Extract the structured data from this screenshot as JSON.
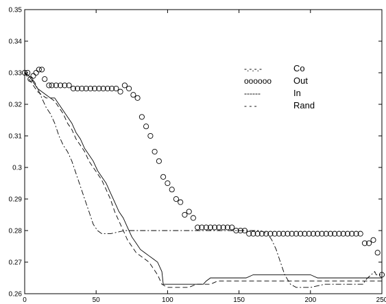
{
  "chart_data": {
    "type": "line",
    "title": "",
    "xlabel": "",
    "ylabel": "",
    "xlim": [
      0,
      250
    ],
    "ylim": [
      0.26,
      0.35
    ],
    "grid": false,
    "legend_position": "top-right",
    "x_ticks": [
      0,
      50,
      100,
      150,
      200,
      250
    ],
    "y_ticks": [
      0.26,
      0.27,
      0.28,
      0.29,
      0.3,
      0.31,
      0.32,
      0.33,
      0.34,
      0.35
    ],
    "x_tick_labels": [
      "0",
      "50",
      "100",
      "150",
      "200",
      "250"
    ],
    "y_tick_labels": [
      "0.26",
      "0.27",
      "0.28",
      "0.29",
      "0.3",
      "0.31",
      "0.32",
      "0.33",
      "0.34",
      "0.35"
    ],
    "legend": [
      {
        "key": "Co",
        "sample": "-.-.-.-",
        "label": "Co"
      },
      {
        "key": "Out",
        "sample": "oooooo",
        "label": "Out"
      },
      {
        "key": "In",
        "sample": "------",
        "label": "In"
      },
      {
        "key": "Rand",
        "sample": "- - -",
        "label": "Rand"
      }
    ],
    "series": [
      {
        "name": "Co",
        "style": "dashdot",
        "color": "#000000",
        "x": [
          0,
          3,
          5,
          7,
          9,
          11,
          13,
          15,
          18,
          21,
          24,
          27,
          30,
          33,
          36,
          39,
          42,
          45,
          48,
          51,
          54,
          56,
          60,
          70,
          80,
          90,
          100,
          110,
          120,
          140,
          160,
          165,
          170,
          173,
          176,
          179,
          182,
          186,
          190,
          200,
          210,
          220,
          230,
          237,
          238,
          240,
          245,
          246,
          248,
          250
        ],
        "y": [
          0.33,
          0.329,
          0.328,
          0.327,
          0.325,
          0.323,
          0.321,
          0.319,
          0.317,
          0.314,
          0.31,
          0.307,
          0.305,
          0.302,
          0.298,
          0.294,
          0.29,
          0.286,
          0.282,
          0.28,
          0.279,
          0.279,
          0.279,
          0.28,
          0.28,
          0.28,
          0.28,
          0.28,
          0.28,
          0.28,
          0.28,
          0.28,
          0.279,
          0.277,
          0.274,
          0.27,
          0.266,
          0.263,
          0.262,
          0.262,
          0.263,
          0.263,
          0.263,
          0.263,
          0.264,
          0.265,
          0.267,
          0.266,
          0.266,
          0.266
        ]
      },
      {
        "name": "Out",
        "style": "markers",
        "color": "#000000",
        "x": [
          0,
          2,
          4,
          6,
          8,
          10,
          12,
          14,
          17,
          19,
          22,
          25,
          28,
          31,
          34,
          37,
          40,
          43,
          46,
          49,
          52,
          55,
          58,
          61,
          64,
          67,
          70,
          73,
          76,
          79,
          82,
          85,
          88,
          91,
          94,
          97,
          100,
          103,
          106,
          109,
          112,
          115,
          118,
          121,
          124,
          127,
          130,
          133,
          136,
          139,
          142,
          145,
          148,
          151,
          154,
          157,
          160,
          163,
          166,
          169,
          172,
          175,
          178,
          181,
          184,
          187,
          190,
          193,
          196,
          199,
          202,
          205,
          208,
          211,
          214,
          217,
          220,
          223,
          226,
          229,
          232,
          235,
          238,
          241,
          244,
          247,
          250
        ],
        "y": [
          0.33,
          0.33,
          0.328,
          0.329,
          0.33,
          0.331,
          0.331,
          0.328,
          0.326,
          0.326,
          0.326,
          0.326,
          0.326,
          0.326,
          0.325,
          0.325,
          0.325,
          0.325,
          0.325,
          0.325,
          0.325,
          0.325,
          0.325,
          0.325,
          0.325,
          0.324,
          0.326,
          0.325,
          0.323,
          0.322,
          0.316,
          0.313,
          0.31,
          0.305,
          0.302,
          0.297,
          0.295,
          0.293,
          0.29,
          0.289,
          0.285,
          0.286,
          0.284,
          0.281,
          0.281,
          0.281,
          0.281,
          0.281,
          0.281,
          0.281,
          0.281,
          0.281,
          0.28,
          0.28,
          0.28,
          0.279,
          0.279,
          0.279,
          0.279,
          0.279,
          0.279,
          0.279,
          0.279,
          0.279,
          0.279,
          0.279,
          0.279,
          0.279,
          0.279,
          0.279,
          0.279,
          0.279,
          0.279,
          0.279,
          0.279,
          0.279,
          0.279,
          0.279,
          0.279,
          0.279,
          0.279,
          0.279,
          0.276,
          0.276,
          0.277,
          0.273,
          0.266
        ]
      },
      {
        "name": "In",
        "style": "solid",
        "color": "#000000",
        "x": [
          0,
          3,
          6,
          9,
          12,
          15,
          18,
          21,
          24,
          27,
          30,
          33,
          36,
          39,
          42,
          45,
          48,
          51,
          54,
          57,
          60,
          63,
          66,
          69,
          72,
          75,
          78,
          81,
          84,
          87,
          90,
          93,
          96,
          97,
          100,
          110,
          120,
          125,
          127,
          130,
          135,
          140,
          145,
          150,
          155,
          160,
          170,
          180,
          190,
          200,
          205,
          210,
          220,
          230,
          240,
          250
        ],
        "y": [
          0.33,
          0.329,
          0.327,
          0.325,
          0.324,
          0.323,
          0.322,
          0.322,
          0.32,
          0.318,
          0.316,
          0.314,
          0.311,
          0.309,
          0.306,
          0.304,
          0.302,
          0.299,
          0.297,
          0.295,
          0.292,
          0.289,
          0.286,
          0.284,
          0.281,
          0.278,
          0.276,
          0.274,
          0.273,
          0.272,
          0.271,
          0.27,
          0.267,
          0.263,
          0.263,
          0.263,
          0.263,
          0.263,
          0.264,
          0.265,
          0.265,
          0.265,
          0.265,
          0.265,
          0.265,
          0.266,
          0.266,
          0.266,
          0.266,
          0.266,
          0.265,
          0.265,
          0.265,
          0.265,
          0.265,
          0.265
        ]
      },
      {
        "name": "Rand",
        "style": "dashed",
        "color": "#000000",
        "x": [
          0,
          3,
          6,
          9,
          12,
          15,
          18,
          21,
          24,
          27,
          30,
          33,
          36,
          39,
          42,
          45,
          48,
          51,
          54,
          57,
          60,
          63,
          66,
          69,
          72,
          75,
          78,
          81,
          84,
          87,
          90,
          93,
          96,
          100,
          105,
          110,
          115,
          120,
          125,
          130,
          135,
          140,
          150,
          160,
          170,
          180,
          190,
          200,
          210,
          220,
          230,
          240,
          250
        ],
        "y": [
          0.33,
          0.328,
          0.326,
          0.324,
          0.323,
          0.322,
          0.322,
          0.321,
          0.319,
          0.317,
          0.314,
          0.312,
          0.309,
          0.307,
          0.305,
          0.302,
          0.3,
          0.298,
          0.296,
          0.293,
          0.29,
          0.286,
          0.283,
          0.28,
          0.277,
          0.275,
          0.273,
          0.272,
          0.271,
          0.27,
          0.268,
          0.266,
          0.263,
          0.262,
          0.262,
          0.262,
          0.262,
          0.263,
          0.263,
          0.263,
          0.264,
          0.264,
          0.264,
          0.264,
          0.264,
          0.264,
          0.264,
          0.264,
          0.264,
          0.264,
          0.264,
          0.264,
          0.264
        ]
      }
    ]
  }
}
